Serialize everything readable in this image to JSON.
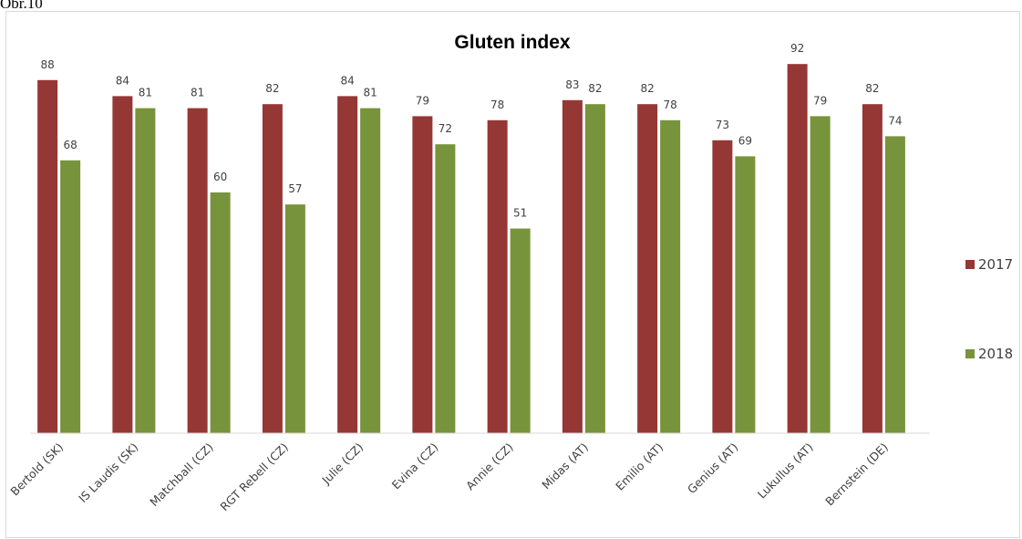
{
  "caption": "Obr.10",
  "chart_data": {
    "type": "bar",
    "title": "Gluten index",
    "xlabel": "",
    "ylabel": "",
    "ylim": [
      0,
      100
    ],
    "grid": false,
    "legend_placement": "right",
    "categories": [
      "Bertold (SK)",
      "IS Laudis (SK)",
      "Matchball (CZ)",
      "RGT Rebell (CZ)",
      "Julie (CZ)",
      "Evina (CZ)",
      "Annie (CZ)",
      "Midas (AT)",
      "Emilio (AT)",
      "Genius (AT)",
      "Lukullus (AT)",
      "Bernstein (DE)"
    ],
    "series": [
      {
        "name": "2017",
        "color": "#953735",
        "values": [
          88,
          84,
          81,
          82,
          84,
          79,
          78,
          83,
          82,
          73,
          92,
          82
        ]
      },
      {
        "name": "2018",
        "color": "#77933c",
        "values": [
          68,
          81,
          60,
          57,
          81,
          72,
          51,
          82,
          78,
          69,
          79,
          74
        ]
      }
    ]
  }
}
